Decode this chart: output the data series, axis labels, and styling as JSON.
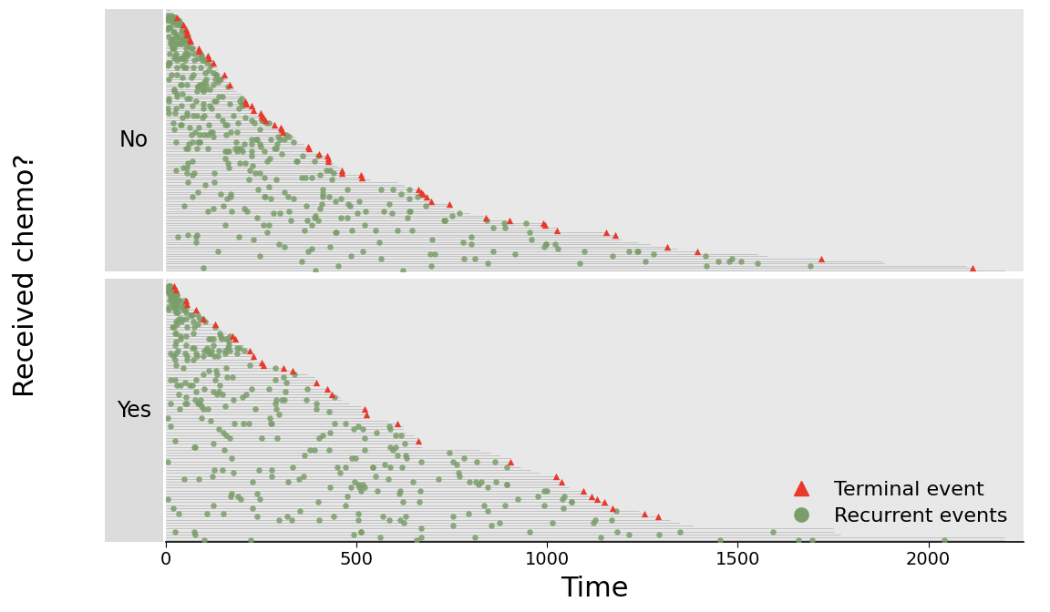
{
  "xlabel": "Time",
  "ylabel": "Received chemo?",
  "strip_labels_top": "No",
  "strip_labels_bottom": "Yes",
  "xlim": [
    0,
    2250
  ],
  "xticks": [
    0,
    500,
    1000,
    1500,
    2000
  ],
  "terminal_color": "#E8392A",
  "recurrent_color": "#7A9E6A",
  "line_color": "#C0C0C0",
  "strip_bg_color": "#DCDCDC",
  "plot_bg_color": "#E8E8E8",
  "legend_terminal": "Terminal event",
  "legend_recurrent": "Recurrent events",
  "n_no": 110,
  "n_yes": 90,
  "seed_no": 1,
  "seed_yes": 2
}
